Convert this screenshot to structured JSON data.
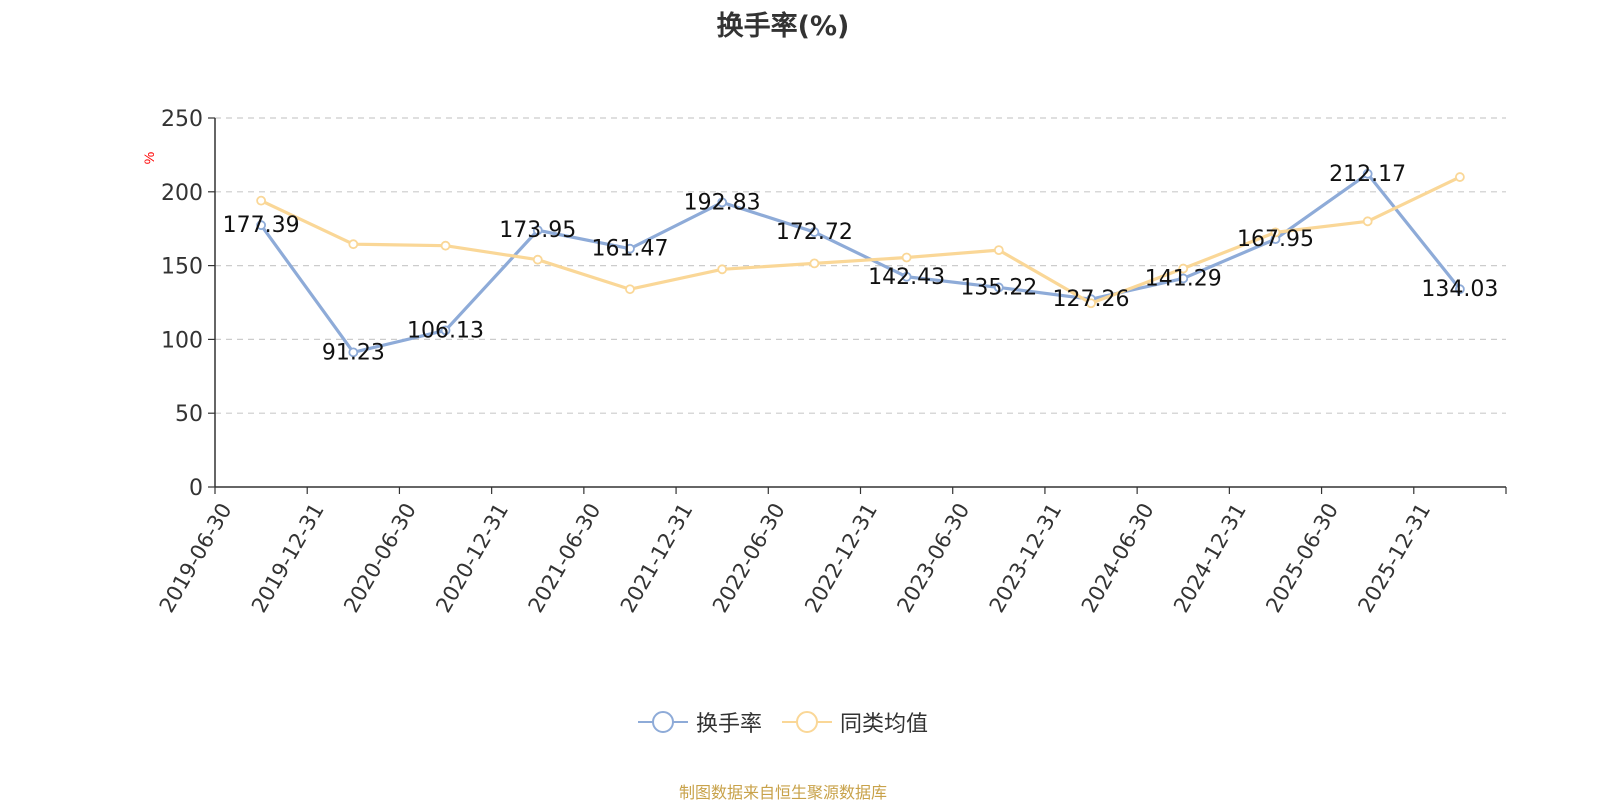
{
  "chart_data": {
    "type": "line",
    "title": "换手率(%)",
    "ylabel": "%",
    "xlabel": "",
    "ylim": [
      0,
      250
    ],
    "yticks": [
      0,
      50,
      100,
      150,
      200,
      250
    ],
    "grid": true,
    "legend_position": "bottom",
    "categories": [
      "2019-06-30",
      "2019-12-31",
      "2020-06-30",
      "2020-12-31",
      "2021-06-30",
      "2021-12-31",
      "2022-06-30",
      "2022-12-31",
      "2023-06-30",
      "2023-12-31",
      "2024-06-30",
      "2024-12-31",
      "2025-06-30",
      "2025-12-31"
    ],
    "series": [
      {
        "name": "换手率",
        "color": "#8eabd8",
        "show_labels": true,
        "values": [
          177.39,
          91.23,
          106.13,
          173.95,
          161.47,
          192.83,
          172.72,
          142.43,
          135.22,
          127.26,
          141.29,
          167.95,
          212.17,
          134.03
        ]
      },
      {
        "name": "同类均值",
        "color": "#fad797",
        "show_labels": false,
        "values": [
          194.0,
          164.5,
          163.5,
          154.0,
          134.0,
          147.5,
          151.5,
          155.5,
          160.5,
          124.5,
          148.0,
          172.5,
          180.0,
          210.0
        ]
      }
    ]
  },
  "footer": {
    "source": "制图数据来自恒生聚源数据库"
  }
}
